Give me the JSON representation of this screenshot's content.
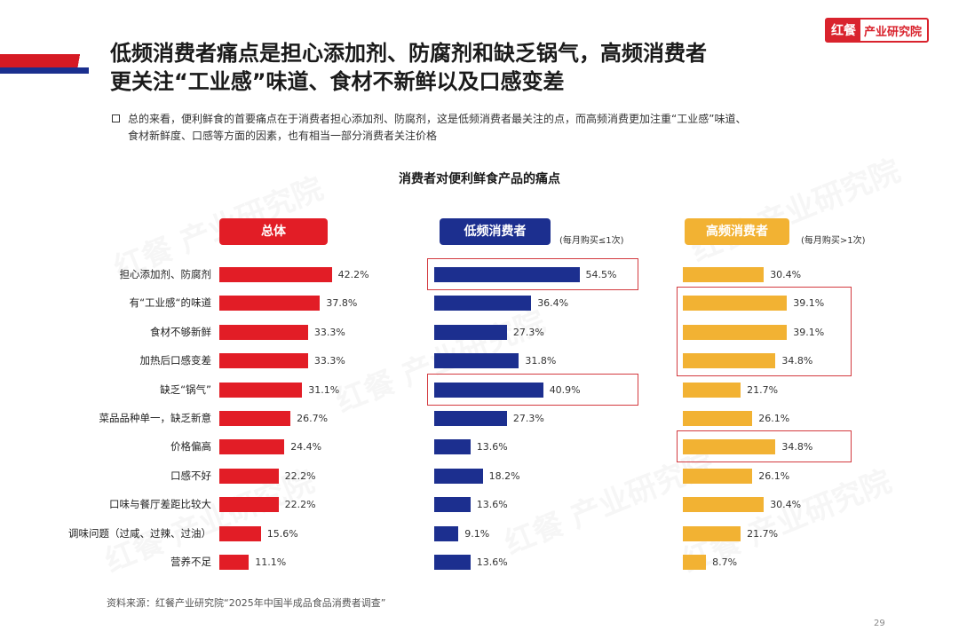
{
  "title_line1": "低频消费者痛点是担心添加剂、防腐剂和缺乏锅气，高频消费者",
  "title_line2": "更关注“工业感”味道、食材不新鲜以及口感变差",
  "logo": {
    "mark": "红餐",
    "text": "产业研究院"
  },
  "summary_line1": "总的来看，便利鲜食的首要痛点在于消费者担心添加剂、防腐剂，这是低频消费者最关注的点，而高频消费更加注重“工业感”味道、",
  "summary_line2": "食材新鲜度、口感等方面的因素，也有相当一部分消费者关注价格",
  "source": "资料来源：红餐产业研究院“2025年中国半成品食品消费者调查”",
  "page_number": "29",
  "watermark": "红餐 产业研究院",
  "colors": {
    "overall": "#e21d26",
    "low": "#1c2f8f",
    "high": "#f2b233",
    "highlight": "#d33a3f"
  },
  "chart_data": {
    "type": "bar",
    "orientation": "horizontal",
    "title": "消费者对便利鲜食产品的痛点",
    "unit": "%",
    "categories": [
      "担心添加剂、防腐剂",
      "有“工业感“的味道",
      "食材不够新鲜",
      "加热后口感变差",
      "缺乏“锅气”",
      "菜品品种单一，缺乏新意",
      "价格偏高",
      "口感不好",
      "口味与餐厅差距比较大",
      "调味问题（过咸、过辣、过油）",
      "营养不足"
    ],
    "series": [
      {
        "name": "总体",
        "note": "",
        "values": [
          42.2,
          37.8,
          33.3,
          33.3,
          31.1,
          26.7,
          24.4,
          22.2,
          22.2,
          15.6,
          11.1
        ],
        "labels": [
          "42.2%",
          "37.8%",
          "33.3%",
          "33.3%",
          "31.1%",
          "26.7%",
          "24.4%",
          "22.2%",
          "22.2%",
          "15.6%",
          "11.1%"
        ]
      },
      {
        "name": "低频消费者",
        "note": "(每月购买≤1次)",
        "values": [
          54.5,
          36.4,
          27.3,
          31.8,
          40.9,
          27.3,
          13.6,
          18.2,
          13.6,
          9.1,
          13.6
        ],
        "labels": [
          "54.5%",
          "36.4%",
          "27.3%",
          "31.8%",
          "40.9%",
          "27.3%",
          "13.6%",
          "18.2%",
          "13.6%",
          "9.1%",
          "13.6%"
        ]
      },
      {
        "name": "高频消费者",
        "note": "(每月购买>1次)",
        "values": [
          30.4,
          39.1,
          39.1,
          34.8,
          21.7,
          26.1,
          34.8,
          26.1,
          30.4,
          21.7,
          8.7
        ],
        "labels": [
          "30.4%",
          "39.1%",
          "39.1%",
          "34.8%",
          "21.7%",
          "26.1%",
          "34.8%",
          "26.1%",
          "30.4%",
          "21.7%",
          "8.7%"
        ]
      }
    ],
    "highlights": [
      {
        "series": 1,
        "rows": [
          0,
          0
        ]
      },
      {
        "series": 1,
        "rows": [
          4,
          4
        ]
      },
      {
        "series": 2,
        "rows": [
          1,
          3
        ]
      },
      {
        "series": 2,
        "rows": [
          6,
          6
        ]
      }
    ]
  }
}
